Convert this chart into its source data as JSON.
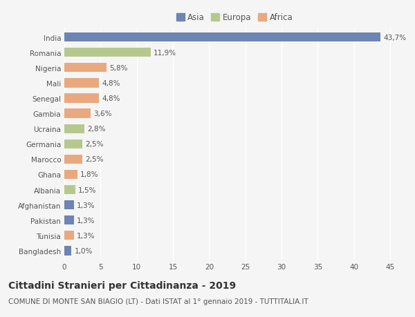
{
  "countries": [
    "India",
    "Romania",
    "Nigeria",
    "Mali",
    "Senegal",
    "Gambia",
    "Ucraina",
    "Germania",
    "Marocco",
    "Ghana",
    "Albania",
    "Afghanistan",
    "Pakistan",
    "Tunisia",
    "Bangladesh"
  ],
  "values": [
    43.7,
    11.9,
    5.8,
    4.8,
    4.8,
    3.6,
    2.8,
    2.5,
    2.5,
    1.8,
    1.5,
    1.3,
    1.3,
    1.3,
    1.0
  ],
  "labels": [
    "43,7%",
    "11,9%",
    "5,8%",
    "4,8%",
    "4,8%",
    "3,6%",
    "2,8%",
    "2,5%",
    "2,5%",
    "1,8%",
    "1,5%",
    "1,3%",
    "1,3%",
    "1,3%",
    "1,0%"
  ],
  "continents": [
    "Asia",
    "Europa",
    "Africa",
    "Africa",
    "Africa",
    "Africa",
    "Europa",
    "Europa",
    "Africa",
    "Africa",
    "Europa",
    "Asia",
    "Asia",
    "Africa",
    "Asia"
  ],
  "colors": {
    "Asia": "#6d84b4",
    "Europa": "#b5c98e",
    "Africa": "#e8a97e"
  },
  "xlim": [
    0,
    47
  ],
  "xticks": [
    0,
    5,
    10,
    15,
    20,
    25,
    30,
    35,
    40,
    45
  ],
  "title": "Cittadini Stranieri per Cittadinanza - 2019",
  "subtitle": "COMUNE DI MONTE SAN BIAGIO (LT) - Dati ISTAT al 1° gennaio 2019 - TUTTITALIA.IT",
  "background_color": "#f5f5f5",
  "bar_height": 0.6,
  "title_fontsize": 10,
  "subtitle_fontsize": 7.5,
  "label_fontsize": 7.5,
  "ytick_fontsize": 7.5,
  "xtick_fontsize": 7.5,
  "legend_fontsize": 8.5
}
